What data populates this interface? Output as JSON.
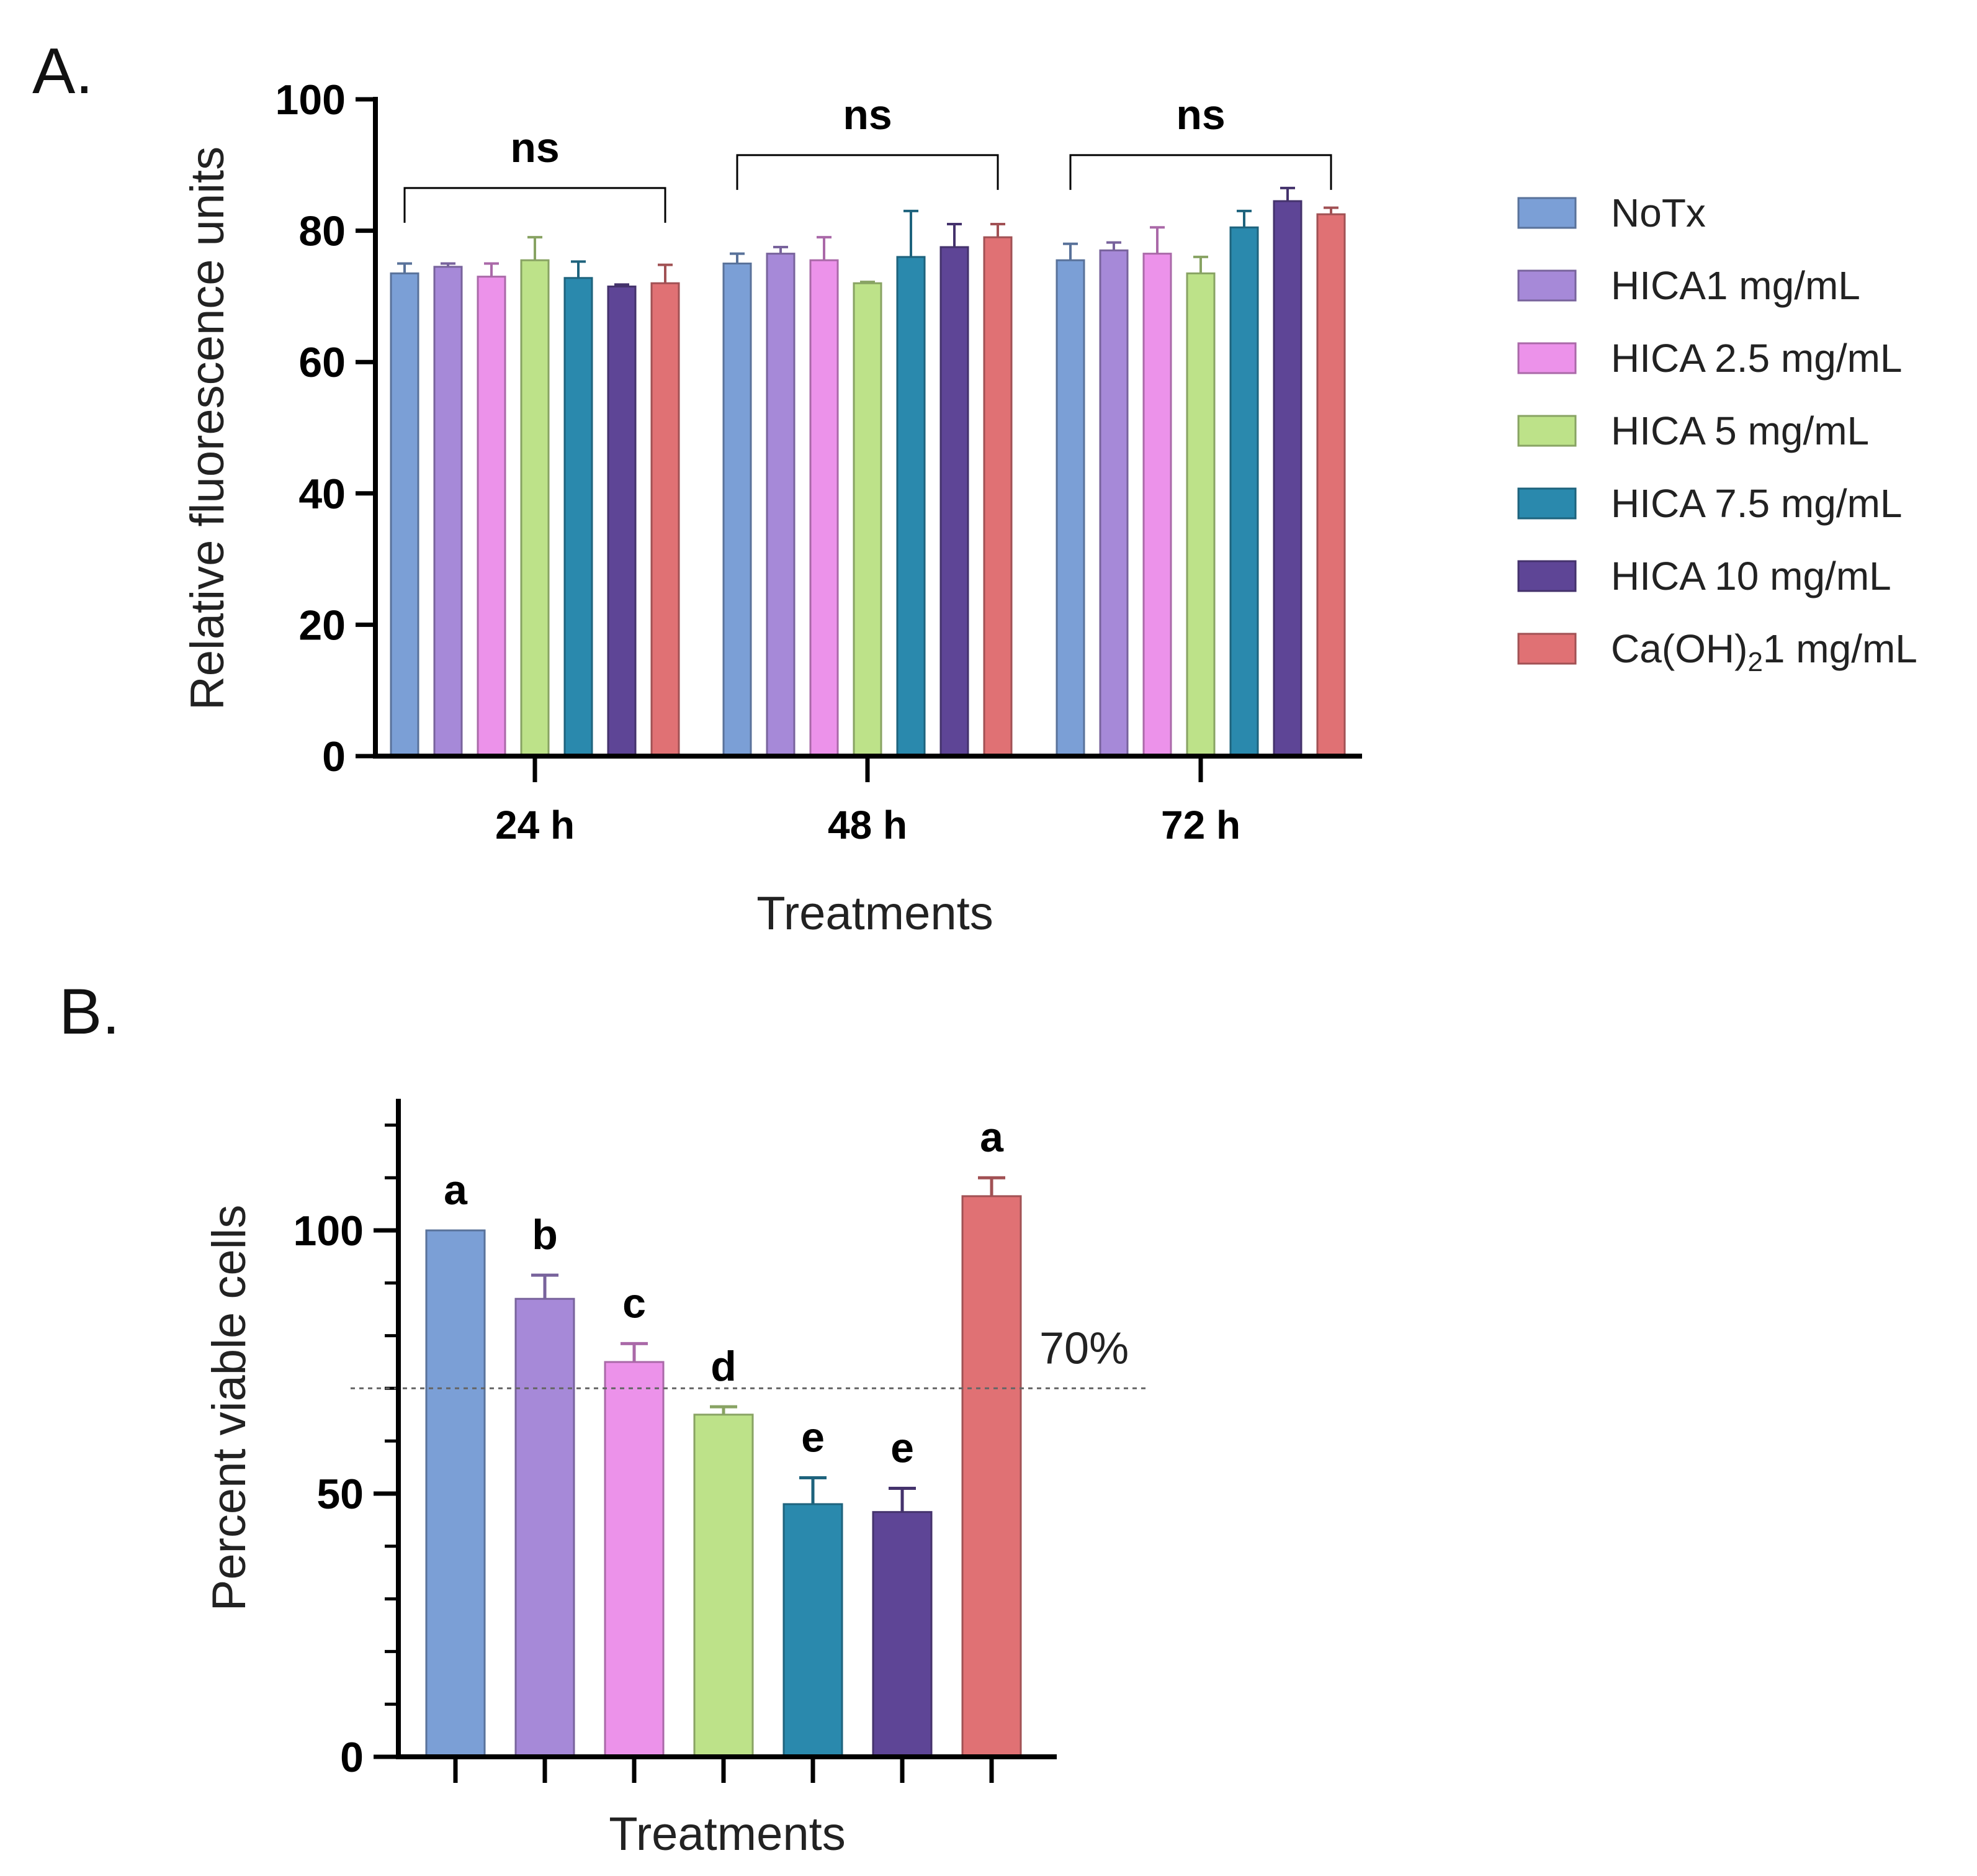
{
  "chart_data": [
    {
      "panel": "A.",
      "type": "bar",
      "categories": [
        "24 h",
        "48 h",
        "72 h"
      ],
      "xlabel": "Treatments",
      "ylabel": "Relative fluorescence units",
      "ylim": [
        0,
        100
      ],
      "yticks": [
        0,
        20,
        40,
        60,
        80,
        100
      ],
      "series": [
        {
          "name": "NoTx",
          "color": "#7b9fd6",
          "values": [
            73.5,
            75,
            75.5
          ],
          "errors": [
            1.5,
            1.5,
            2.5
          ]
        },
        {
          "name": "HICA1 mg/mL",
          "color": "#a689d8",
          "values": [
            74.5,
            76.5,
            77
          ],
          "errors": [
            0.5,
            1,
            1.2
          ]
        },
        {
          "name": "HICA 2.5 mg/mL",
          "color": "#ec92ea",
          "values": [
            73,
            75.5,
            76.5
          ],
          "errors": [
            2,
            3.5,
            4
          ]
        },
        {
          "name": "HICA 5 mg/mL",
          "color": "#bde289",
          "values": [
            75.5,
            72,
            73.5
          ],
          "errors": [
            3.5,
            0.2,
            2.5
          ]
        },
        {
          "name": "HICA 7.5 mg/mL",
          "color": "#2a89ad",
          "values": [
            72.8,
            76,
            80.5
          ],
          "errors": [
            2.5,
            7,
            2.5
          ]
        },
        {
          "name": "HICA 10 mg/mL",
          "color": "#5e4596",
          "values": [
            71.5,
            77.5,
            84.5
          ],
          "errors": [
            0.3,
            3.5,
            2
          ]
        },
        {
          "name": "Ca(OH)",
          "name_sub": "2",
          "name_tail": "1 mg/mL",
          "color": "#e07174",
          "values": [
            72,
            79,
            82.5
          ],
          "errors": [
            2.8,
            2,
            1
          ]
        }
      ],
      "annotations": [
        {
          "group": "24 h",
          "text": "ns",
          "bracket_y": 86.5
        },
        {
          "group": "48 h",
          "text": "ns",
          "bracket_y": 91.5
        },
        {
          "group": "72 h",
          "text": "ns",
          "bracket_y": 91.5
        }
      ]
    },
    {
      "panel": "B.",
      "type": "bar",
      "xlabel": "Treatments",
      "ylabel": "Percent viable cells",
      "ylim": [
        0,
        125
      ],
      "yticks": [
        0,
        50,
        100
      ],
      "minor_tick_step": 10,
      "reference_line": {
        "value": 70,
        "label": "70%"
      },
      "bars": [
        {
          "name": "NoTx",
          "color": "#7b9fd6",
          "value": 100,
          "error": 0,
          "letter": "a"
        },
        {
          "name": "HICA1 mg/mL",
          "color": "#a689d8",
          "value": 87,
          "error": 4.5,
          "letter": "b"
        },
        {
          "name": "HICA 2.5 mg/mL",
          "color": "#ec92ea",
          "value": 75,
          "error": 3.5,
          "letter": "c"
        },
        {
          "name": "HICA 5 mg/mL",
          "color": "#bde289",
          "value": 65,
          "error": 1.5,
          "letter": "d"
        },
        {
          "name": "HICA 7.5 mg/mL",
          "color": "#2a89ad",
          "value": 48,
          "error": 5,
          "letter": "e"
        },
        {
          "name": "HICA 10 mg/mL",
          "color": "#5e4596",
          "value": 46.5,
          "error": 4.5,
          "letter": "e"
        },
        {
          "name": "Ca(OH)21 mg/mL",
          "color": "#e07174",
          "value": 106.5,
          "error": 3.5,
          "letter": "a"
        }
      ]
    }
  ]
}
